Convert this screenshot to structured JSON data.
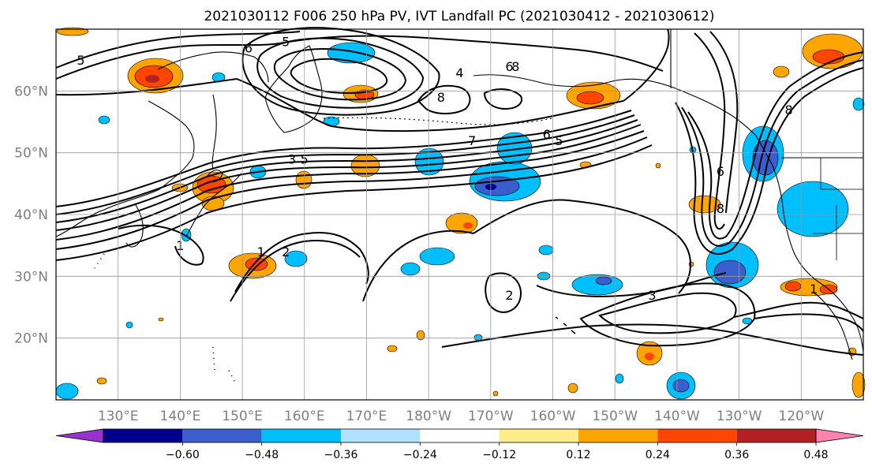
{
  "title": "2021030112 F006 250 hPa PV, IVT Landfall PC (2021030412 - 2021030612)",
  "map": {
    "lat_ticks": [
      {
        "value": 60,
        "label": "60°N"
      },
      {
        "value": 50,
        "label": "50°N"
      },
      {
        "value": 40,
        "label": "40°N"
      },
      {
        "value": 30,
        "label": "30°N"
      },
      {
        "value": 20,
        "label": "20°N"
      }
    ],
    "lon_ticks": [
      {
        "value": 130,
        "label": "130°E"
      },
      {
        "value": 140,
        "label": "140°E"
      },
      {
        "value": 150,
        "label": "150°E"
      },
      {
        "value": 160,
        "label": "160°E"
      },
      {
        "value": 170,
        "label": "170°E"
      },
      {
        "value": 180,
        "label": "180°W"
      },
      {
        "value": 190,
        "label": "170°W"
      },
      {
        "value": 200,
        "label": "160°W"
      },
      {
        "value": 210,
        "label": "150°W"
      },
      {
        "value": 220,
        "label": "140°W"
      },
      {
        "value": 230,
        "label": "130°W"
      },
      {
        "value": 240,
        "label": "120°W"
      }
    ],
    "lat_range": [
      10,
      70
    ],
    "lon_range": [
      120,
      250
    ],
    "grid": true,
    "contour_labels": [
      {
        "text": "5",
        "lon": 124,
        "lat": 65
      },
      {
        "text": "6",
        "lon": 151,
        "lat": 67
      },
      {
        "text": "5",
        "lon": 157,
        "lat": 68
      },
      {
        "text": "4",
        "lon": 185,
        "lat": 63
      },
      {
        "text": "6",
        "lon": 193,
        "lat": 64
      },
      {
        "text": "8",
        "lon": 194,
        "lat": 64
      },
      {
        "text": "8",
        "lon": 182,
        "lat": 59
      },
      {
        "text": "7",
        "lon": 187,
        "lat": 52
      },
      {
        "text": "6",
        "lon": 199,
        "lat": 53
      },
      {
        "text": "5",
        "lon": 201,
        "lat": 52
      },
      {
        "text": "3",
        "lon": 158,
        "lat": 49
      },
      {
        "text": "5",
        "lon": 160,
        "lat": 49
      },
      {
        "text": "1",
        "lon": 140,
        "lat": 35
      },
      {
        "text": "1",
        "lon": 153,
        "lat": 34
      },
      {
        "text": "2",
        "lon": 157,
        "lat": 34
      },
      {
        "text": "2",
        "lon": 193,
        "lat": 27
      },
      {
        "text": "3",
        "lon": 216,
        "lat": 27
      },
      {
        "text": "8",
        "lon": 238,
        "lat": 57
      },
      {
        "text": "6",
        "lon": 227,
        "lat": 47
      },
      {
        "text": "8",
        "lon": 227,
        "lat": 41
      },
      {
        "text": "1",
        "lon": 242,
        "lat": 28
      }
    ]
  },
  "fill_scale": {
    "levels": [
      -0.6,
      -0.48,
      -0.36,
      -0.24,
      -0.12,
      0.12,
      0.24,
      0.36,
      0.48,
      0.6
    ],
    "labels": [
      "−0.60",
      "−0.48",
      "−0.36",
      "−0.24",
      "−0.12",
      "0.12",
      "0.24",
      "0.36",
      "0.48",
      "0.60"
    ],
    "colors": [
      "#9932cc",
      "#00008b",
      "#3a5fcd",
      "#00bfff",
      "#b0e2ff",
      "#ffffff",
      "#ffec8b",
      "#ffa500",
      "#ff4500",
      "#b22222",
      "#ff83ac"
    ]
  }
}
